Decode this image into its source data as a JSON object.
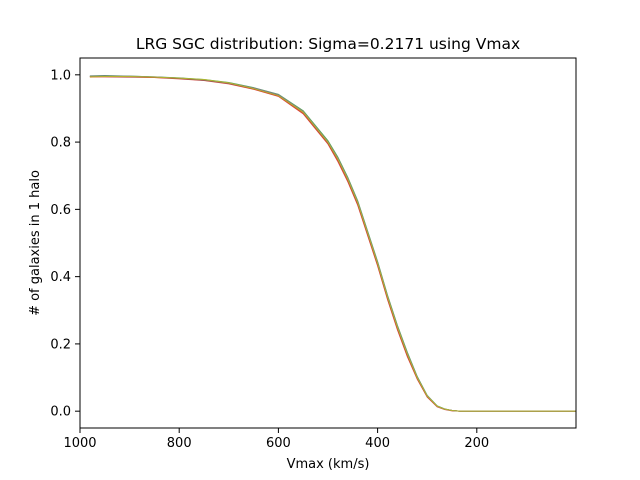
{
  "chart_data": {
    "type": "line",
    "title": "LRG SGC distribution: Sigma=0.2171 using Vmax",
    "xlabel": "Vmax (km/s)",
    "ylabel": "# of galaxies in 1 halo",
    "xlim": [
      1000,
      0
    ],
    "ylim": [
      -0.05,
      1.05
    ],
    "x_reversed": true,
    "grid": false,
    "legend": "none",
    "xticks": [
      1000,
      800,
      600,
      400,
      200
    ],
    "xtick_labels": [
      "1000",
      "800",
      "600",
      "400",
      "200"
    ],
    "yticks": [
      0.0,
      0.2,
      0.4,
      0.6,
      0.8,
      1.0
    ],
    "ytick_labels": [
      "0.0",
      "0.2",
      "0.4",
      "0.6",
      "0.8",
      "1.0"
    ],
    "x": [
      980,
      950,
      900,
      850,
      800,
      750,
      700,
      650,
      600,
      550,
      500,
      480,
      460,
      440,
      420,
      400,
      380,
      360,
      340,
      320,
      300,
      280,
      265,
      250,
      235,
      220,
      200,
      150,
      100,
      50,
      0
    ],
    "series": [
      {
        "color": "#1f77b4",
        "values": [
          0.995,
          0.996,
          0.995,
          0.993,
          0.99,
          0.985,
          0.975,
          0.96,
          0.94,
          0.89,
          0.8,
          0.75,
          0.69,
          0.62,
          0.53,
          0.44,
          0.34,
          0.25,
          0.17,
          0.1,
          0.045,
          0.015,
          0.006,
          0.002,
          0.0,
          0.0,
          0.0,
          0.0,
          0.0,
          0.0,
          0.0
        ]
      },
      {
        "color": "#ff7f0e",
        "values": [
          0.993,
          0.995,
          0.994,
          0.992,
          0.989,
          0.984,
          0.974,
          0.958,
          0.937,
          0.886,
          0.796,
          0.745,
          0.685,
          0.615,
          0.525,
          0.435,
          0.335,
          0.245,
          0.165,
          0.097,
          0.043,
          0.014,
          0.006,
          0.002,
          0.0,
          0.0,
          0.0,
          0.0,
          0.0,
          0.0,
          0.0
        ]
      },
      {
        "color": "#2ca02c",
        "values": [
          0.997,
          0.998,
          0.996,
          0.994,
          0.991,
          0.986,
          0.977,
          0.962,
          0.942,
          0.893,
          0.804,
          0.755,
          0.695,
          0.625,
          0.535,
          0.445,
          0.345,
          0.255,
          0.175,
          0.103,
          0.047,
          0.016,
          0.007,
          0.002,
          0.0,
          0.0,
          0.0,
          0.0,
          0.0,
          0.0,
          0.0
        ]
      },
      {
        "color": "#d62728",
        "values": [
          0.994,
          0.994,
          0.993,
          0.992,
          0.988,
          0.983,
          0.973,
          0.957,
          0.936,
          0.884,
          0.794,
          0.742,
          0.682,
          0.612,
          0.522,
          0.432,
          0.332,
          0.242,
          0.162,
          0.095,
          0.042,
          0.013,
          0.005,
          0.001,
          0.0,
          0.0,
          0.0,
          0.0,
          0.0,
          0.0,
          0.0
        ]
      },
      {
        "color": "#9467bd",
        "values": [
          0.996,
          0.997,
          0.995,
          0.993,
          0.99,
          0.985,
          0.976,
          0.961,
          0.941,
          0.891,
          0.801,
          0.752,
          0.692,
          0.622,
          0.532,
          0.442,
          0.342,
          0.252,
          0.172,
          0.101,
          0.046,
          0.015,
          0.006,
          0.002,
          0.0,
          0.0,
          0.0,
          0.0,
          0.0,
          0.0,
          0.0
        ]
      },
      {
        "color": "#8c564b",
        "values": [
          0.995,
          0.995,
          0.994,
          0.993,
          0.989,
          0.984,
          0.975,
          0.959,
          0.939,
          0.888,
          0.798,
          0.748,
          0.688,
          0.618,
          0.528,
          0.438,
          0.338,
          0.248,
          0.168,
          0.099,
          0.044,
          0.015,
          0.006,
          0.002,
          0.0,
          0.0,
          0.0,
          0.0,
          0.0,
          0.0,
          0.0
        ]
      },
      {
        "color": "#7f7f7f",
        "values": [
          0.996,
          0.996,
          0.996,
          0.994,
          0.99,
          0.985,
          0.975,
          0.96,
          0.94,
          0.89,
          0.8,
          0.75,
          0.69,
          0.62,
          0.53,
          0.44,
          0.34,
          0.25,
          0.17,
          0.1,
          0.045,
          0.015,
          0.006,
          0.002,
          0.0,
          0.0,
          0.0,
          0.0,
          0.0,
          0.0,
          0.0
        ]
      },
      {
        "color": "#bcbd22",
        "values": [
          0.994,
          0.995,
          0.995,
          0.993,
          0.99,
          0.986,
          0.976,
          0.959,
          0.938,
          0.889,
          0.799,
          0.749,
          0.689,
          0.619,
          0.529,
          0.439,
          0.339,
          0.249,
          0.169,
          0.099,
          0.045,
          0.015,
          0.006,
          0.002,
          0.0,
          0.0,
          0.0,
          0.0,
          0.0,
          0.0,
          0.0
        ]
      }
    ]
  }
}
